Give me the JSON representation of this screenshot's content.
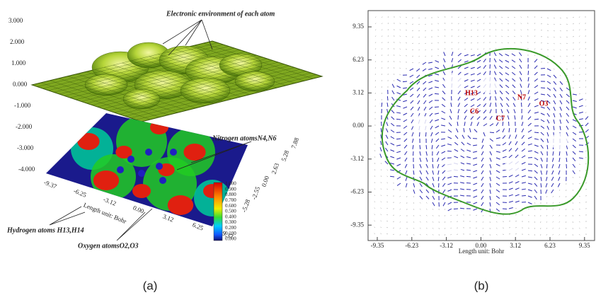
{
  "panel_a": {
    "label": "(a)",
    "annotations": {
      "top": "Electronic environment of each atom",
      "nitrogen": "Nitrogen atomsN4,N6",
      "hydrogen": "Hydrogen atoms H13,H14",
      "oxygen": "Oxygen atomsO2,O3"
    },
    "z_ticks": [
      "3.000",
      "2.000",
      "1.000",
      "0.000",
      "-1.000",
      "-2.000",
      "-3.000",
      "-4.000"
    ],
    "x_ticks": [
      "-9.37",
      "-6.25",
      "-3.12",
      "0.00",
      "3.12",
      "6.25",
      "9.37"
    ],
    "y_ticks": [
      "-5.28",
      "-2.55",
      "0.00",
      "2.63",
      "5.28",
      "7.88"
    ],
    "axis_label": "Length unit: Bohr",
    "colorbar_ticks": [
      "1.000",
      "0.900",
      "0.800",
      "0.700",
      "0.600",
      "0.500",
      "0.400",
      "0.300",
      "0.200",
      "0.100",
      "0.000"
    ]
  },
  "panel_b": {
    "label": "(b)",
    "x_ticks": [
      "-9.35",
      "-6.23",
      "-3.12",
      "0.00",
      "3.12",
      "6.23",
      "9.35"
    ],
    "y_ticks": [
      "9.35",
      "6.23",
      "3.12",
      "0.00",
      "-3.12",
      "-6.23",
      "-9.35"
    ],
    "axis_label": "Length unit: Bohr",
    "atoms": [
      "H13",
      "C6",
      "C7",
      "N7",
      "O3"
    ]
  }
}
